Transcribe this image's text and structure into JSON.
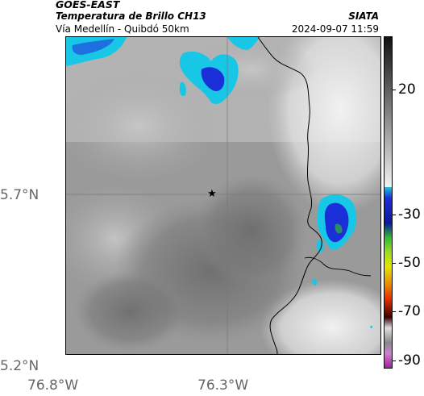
{
  "header": {
    "satellite": "GOES-EAST",
    "product": "Temperatura de Brillo CH13",
    "org": "SIATA",
    "route": "Vía Medellín - Quibdó 50km",
    "datetime": "2024-09-07 11:59"
  },
  "map": {
    "lat_labels": [
      "5.7°N",
      "5.2°N"
    ],
    "lon_labels": [
      "76.8°W",
      "76.3°W"
    ],
    "marker": "location-star"
  },
  "colorbar": {
    "labels": [
      "20",
      "-30",
      "-50",
      "-70",
      "-90"
    ],
    "colors": {
      "gray_high": "#111111",
      "gray_low": "#f2f2f2",
      "cyan": "#18c6e6",
      "blue": "#1a2fd8",
      "green": "#33bb33",
      "yellow": "#e6e600",
      "red": "#e62d00",
      "dark_red": "#3a0000",
      "magenta": "#c040c0"
    }
  }
}
